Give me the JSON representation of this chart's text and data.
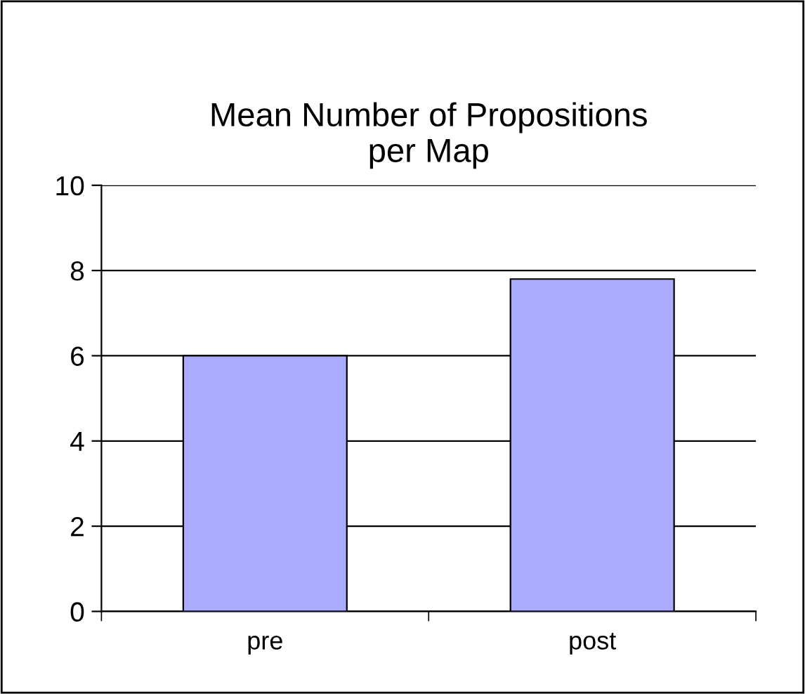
{
  "chart_data": {
    "type": "bar",
    "title": "Mean Number of Propositions\nper Map",
    "categories": [
      "pre",
      "post"
    ],
    "values": [
      6.0,
      7.8
    ],
    "color": "#aaaaff",
    "ylim": [
      0,
      10
    ],
    "yticks": [
      0,
      2,
      4,
      6,
      8,
      10
    ],
    "grid": "y",
    "legend": false
  }
}
